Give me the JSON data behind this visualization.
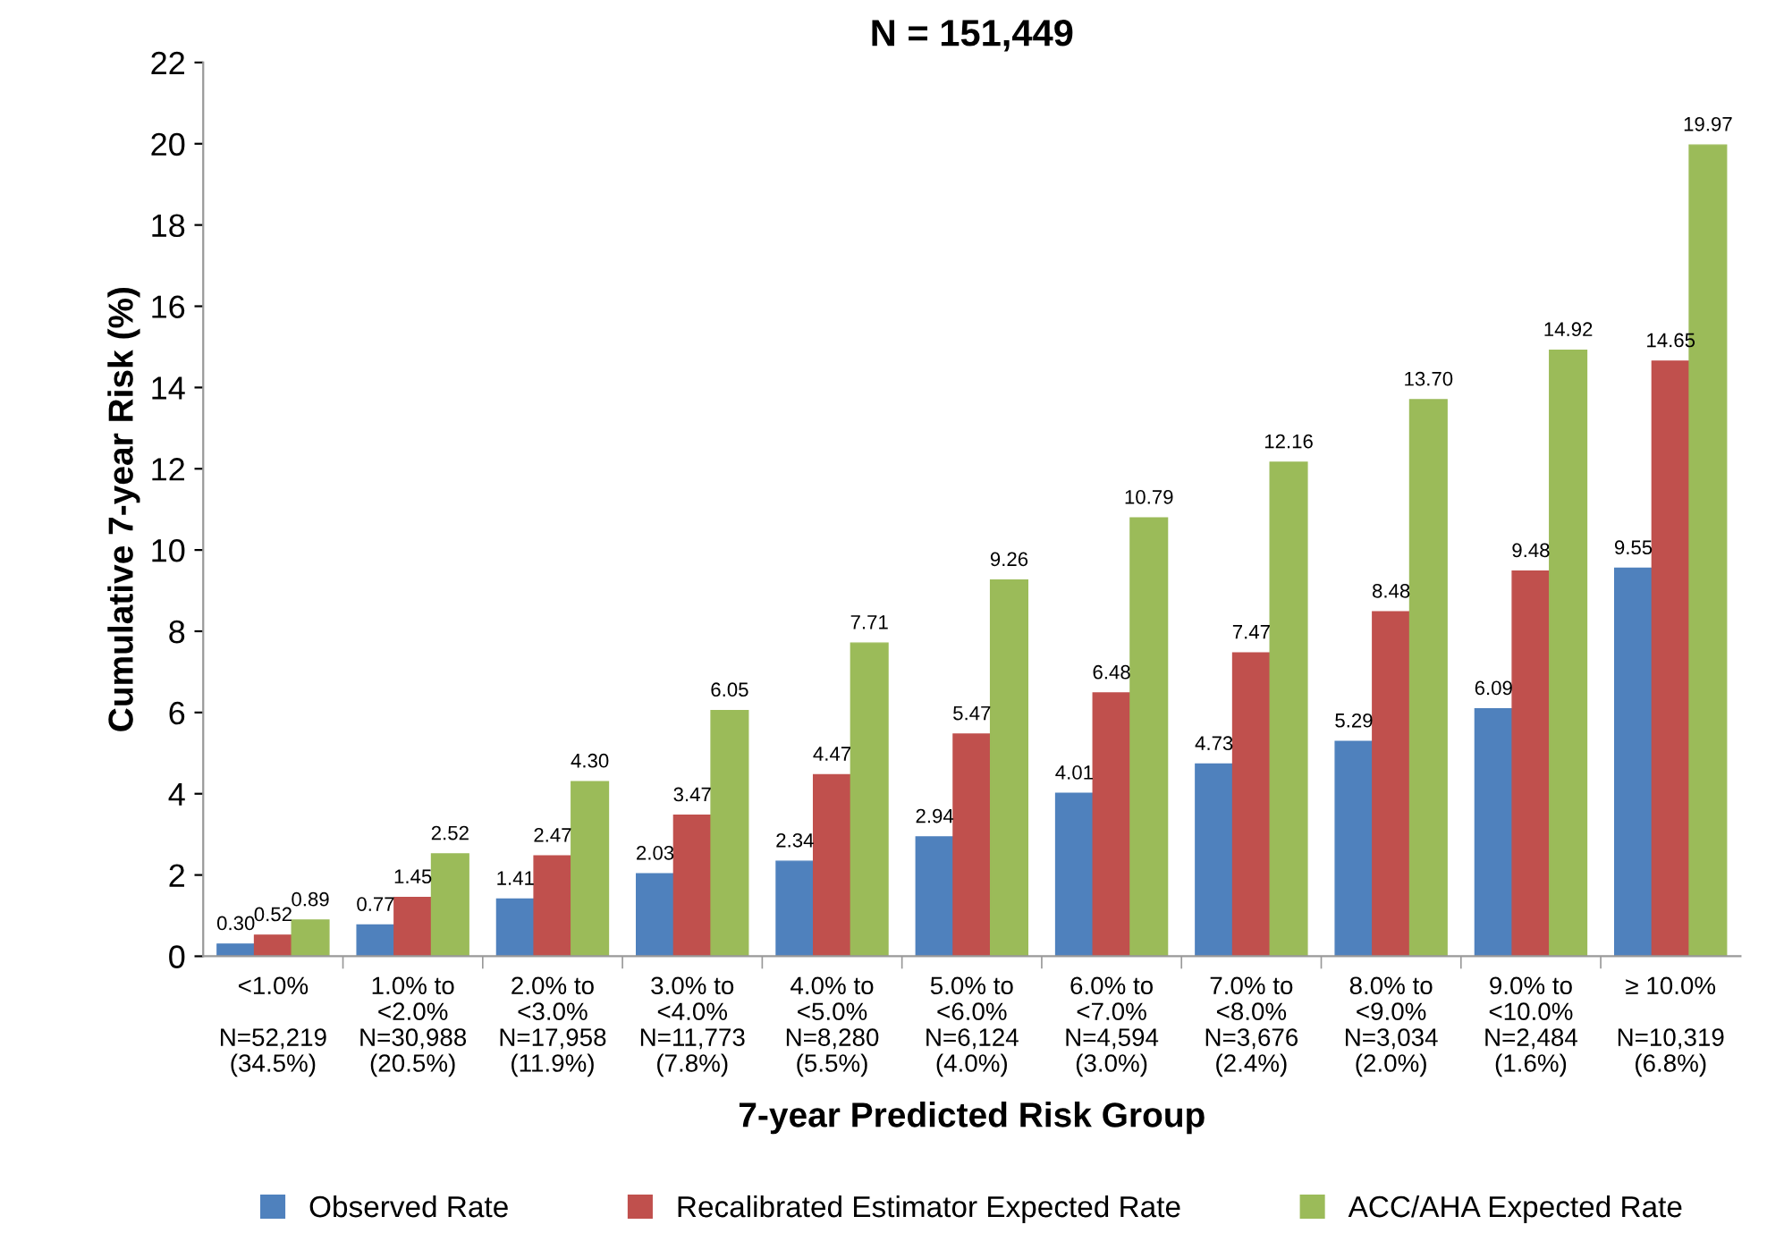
{
  "chart_data": {
    "type": "bar",
    "title": "N = 151,449",
    "xlabel": "7-year Predicted Risk Group",
    "ylabel": "Cumulative 7-year Risk (%)",
    "categories": [
      "<1.0%\n\nN=52,219\n(34.5%)",
      "1.0% to\n<2.0%\nN=30,988\n(20.5%)",
      "2.0% to\n<3.0%\nN=17,958\n(11.9%)",
      "3.0% to\n<4.0%\nN=11,773\n(7.8%)",
      "4.0% to\n<5.0%\nN=8,280\n(5.5%)",
      "5.0% to\n<6.0%\nN=6,124\n(4.0%)",
      "6.0% to\n<7.0%\nN=4,594\n(3.0%)",
      "7.0% to\n<8.0%\nN=3,676\n(2.4%)",
      "8.0% to\n<9.0%\nN=3,034\n(2.0%)",
      "9.0% to\n<10.0%\nN=2,484\n(1.6%)",
      "≥ 10.0%\n\nN=10,319\n(6.8%)"
    ],
    "series": [
      {
        "name": "Observed Rate",
        "color": "#4f81bd",
        "values": [
          0.3,
          0.77,
          1.41,
          2.03,
          2.34,
          2.94,
          4.01,
          4.73,
          5.29,
          6.09,
          9.55
        ],
        "value_labels": [
          "0.30",
          "0.77",
          "1.41",
          "2.03",
          "2.34",
          "2.94",
          "4.01",
          "4.73",
          "5.29",
          "6.09",
          "9.55"
        ]
      },
      {
        "name": "Recalibrated Estimator Expected Rate",
        "color": "#c0504d",
        "values": [
          0.52,
          1.45,
          2.47,
          3.47,
          4.47,
          5.47,
          6.48,
          7.47,
          8.48,
          9.48,
          14.65
        ],
        "value_labels": [
          "0.52",
          "1.45",
          "2.47",
          "3.47",
          "4.47",
          "5.47",
          "6.48",
          "7.47",
          "8.48",
          "9.48",
          "14.65"
        ]
      },
      {
        "name": "ACC/AHA Expected Rate",
        "color": "#9bbb59",
        "values": [
          0.89,
          2.52,
          4.3,
          6.05,
          7.71,
          9.26,
          10.79,
          12.16,
          13.7,
          14.92,
          19.97
        ],
        "value_labels": [
          "0.89",
          "2.52",
          "4.30",
          "6.05",
          "7.71",
          "9.26",
          "10.79",
          "12.16",
          "13.70",
          "14.92",
          "19.97"
        ]
      }
    ],
    "ylim": [
      0,
      22
    ],
    "yticks": [
      0,
      2,
      4,
      6,
      8,
      10,
      12,
      14,
      16,
      18,
      20,
      22
    ],
    "grid": false,
    "legend": "bottom"
  }
}
